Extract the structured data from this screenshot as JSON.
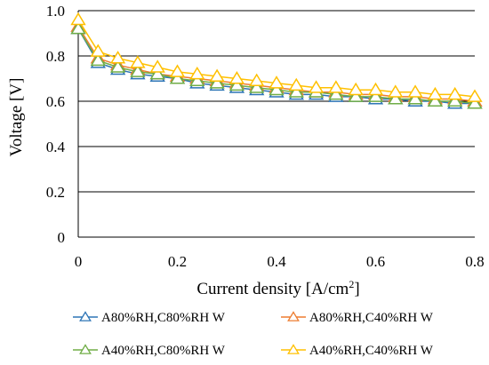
{
  "chart_data": {
    "type": "line",
    "xlabel": "Current density [A/cm",
    "xlabel_sup": "2",
    "xlabel_end": "]",
    "ylabel": "Voltage [V]",
    "xlim": [
      0,
      0.8
    ],
    "ylim": [
      0,
      1.0
    ],
    "xticks": [
      "0",
      "0.2",
      "0.4",
      "0.6",
      "0.8"
    ],
    "yticks": [
      "0",
      "0.2",
      "0.4",
      "0.6",
      "0.8",
      "1.0"
    ],
    "grid": "horizontal",
    "legend_position": "bottom",
    "marker": "triangle-open",
    "x": [
      0.0,
      0.04,
      0.08,
      0.12,
      0.16,
      0.2,
      0.24,
      0.28,
      0.32,
      0.36,
      0.4,
      0.44,
      0.48,
      0.52,
      0.56,
      0.6,
      0.64,
      0.68,
      0.72,
      0.76,
      0.8
    ],
    "series": [
      {
        "name": "A80%RH,C80%RH W",
        "color": "#2E75B6",
        "values": [
          0.92,
          0.77,
          0.74,
          0.72,
          0.71,
          0.7,
          0.68,
          0.67,
          0.66,
          0.65,
          0.64,
          0.63,
          0.63,
          0.62,
          0.62,
          0.61,
          0.61,
          0.6,
          0.6,
          0.59,
          0.59
        ]
      },
      {
        "name": "A80%RH,C40%RH W",
        "color": "#ED7D31",
        "values": [
          0.93,
          0.79,
          0.76,
          0.74,
          0.72,
          0.71,
          0.7,
          0.69,
          0.68,
          0.67,
          0.66,
          0.65,
          0.64,
          0.64,
          0.63,
          0.63,
          0.62,
          0.62,
          0.61,
          0.61,
          0.6
        ]
      },
      {
        "name": "A40%RH,C80%RH W",
        "color": "#70AD47",
        "values": [
          0.92,
          0.78,
          0.75,
          0.73,
          0.72,
          0.7,
          0.69,
          0.68,
          0.67,
          0.66,
          0.65,
          0.64,
          0.64,
          0.63,
          0.62,
          0.62,
          0.61,
          0.61,
          0.6,
          0.6,
          0.59
        ]
      },
      {
        "name": "A40%RH,C40%RH W",
        "color": "#FFC000",
        "values": [
          0.96,
          0.82,
          0.79,
          0.77,
          0.75,
          0.73,
          0.72,
          0.71,
          0.7,
          0.69,
          0.68,
          0.67,
          0.66,
          0.66,
          0.65,
          0.65,
          0.64,
          0.64,
          0.63,
          0.63,
          0.62
        ]
      }
    ]
  }
}
